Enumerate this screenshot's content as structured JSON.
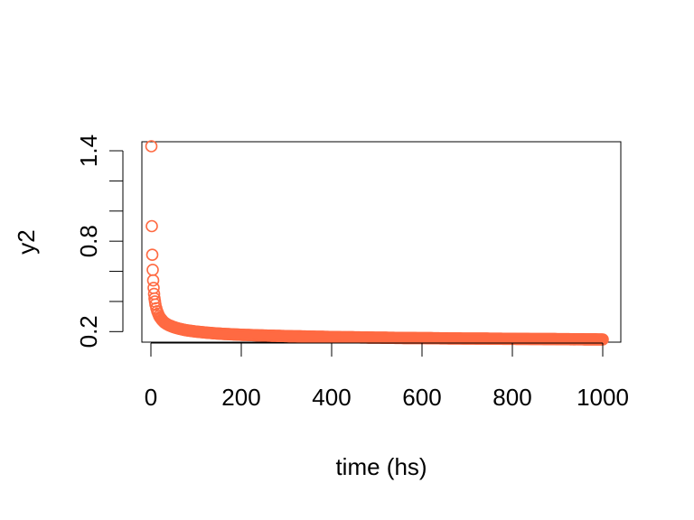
{
  "chart_data": {
    "type": "scatter",
    "title": "",
    "xlabel": "time (hs)",
    "ylabel": "y2",
    "xlim": [
      -20,
      1040
    ],
    "ylim": [
      0.13,
      1.46
    ],
    "x_ticks": [
      0,
      200,
      400,
      600,
      800,
      1000
    ],
    "x_tick_labels": [
      "0",
      "200",
      "400",
      "600",
      "800",
      "1000"
    ],
    "y_ticks": [
      0.2,
      0.4,
      0.6,
      0.8,
      1.0,
      1.2,
      1.4
    ],
    "y_tick_labels": [
      "0.2",
      "",
      "",
      "0.8",
      "",
      "",
      "1.4"
    ],
    "grid": false,
    "marker": "open-circle",
    "series": [
      {
        "color": "#FF6A42",
        "x": [
          1,
          2,
          3,
          4,
          5,
          6,
          7,
          8,
          9,
          10,
          12,
          14,
          16,
          18,
          20,
          25,
          30,
          35,
          40,
          45,
          50,
          60,
          70,
          80,
          90,
          100,
          120,
          140,
          160,
          180,
          200,
          250,
          300,
          350,
          400,
          450,
          500,
          550,
          600,
          650,
          700,
          750,
          800,
          850,
          900,
          950,
          1000
        ],
        "y": [
          1.43,
          0.9,
          0.71,
          0.61,
          0.54,
          0.49,
          0.45,
          0.42,
          0.4,
          0.38,
          0.355,
          0.335,
          0.32,
          0.305,
          0.295,
          0.275,
          0.26,
          0.25,
          0.242,
          0.236,
          0.23,
          0.221,
          0.214,
          0.208,
          0.204,
          0.2,
          0.194,
          0.189,
          0.185,
          0.182,
          0.179,
          0.174,
          0.17,
          0.167,
          0.164,
          0.162,
          0.16,
          0.158,
          0.157,
          0.155,
          0.154,
          0.153,
          0.152,
          0.151,
          0.15,
          0.149,
          0.148
        ]
      }
    ]
  }
}
